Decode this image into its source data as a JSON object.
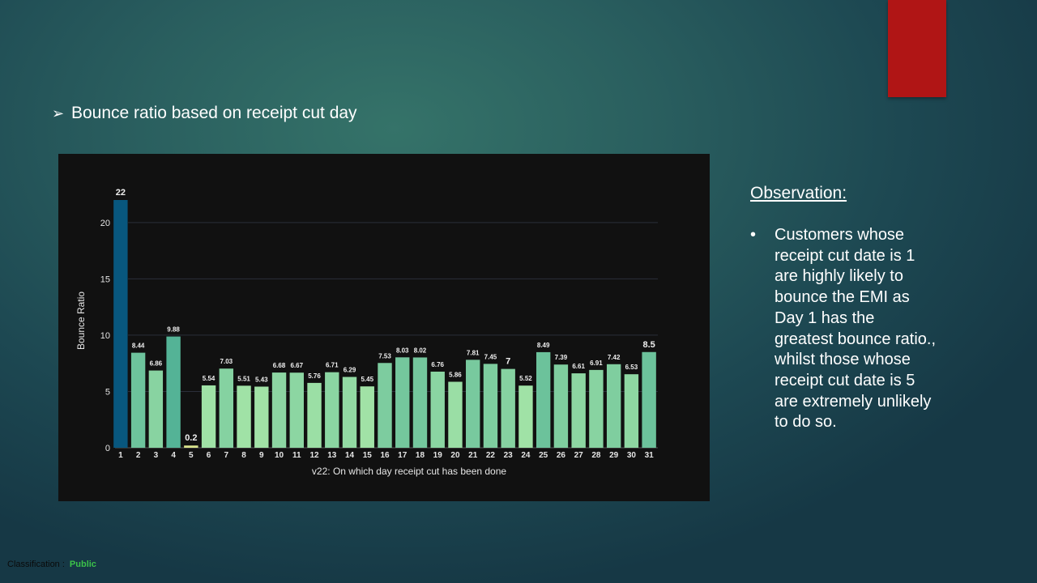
{
  "heading": {
    "arrow": "➢",
    "text": "Bounce ratio based on receipt cut day"
  },
  "observation": {
    "title": "Observation:",
    "bullet": "•",
    "text": "Customers whose receipt cut date is 1 are highly likely to bounce the EMI as Day 1 has the greatest bounce ratio., whilst those whose receipt cut date is 5 are extremely unlikely to do so."
  },
  "classification": {
    "label": "Classification :",
    "value": "Public"
  },
  "colors": {
    "accent_red": "#b01515",
    "bar_max": "#08577e",
    "panel_bg": "#111111"
  },
  "chart_data": {
    "type": "bar",
    "xlabel": "v22: On which day receipt cut has been done",
    "ylabel": "Bounce Ratio",
    "ylim": [
      0,
      22
    ],
    "yticks": [
      0,
      5,
      10,
      15,
      20
    ],
    "grid": true,
    "categories": [
      "1",
      "2",
      "3",
      "4",
      "5",
      "6",
      "7",
      "8",
      "9",
      "10",
      "11",
      "12",
      "13",
      "14",
      "15",
      "16",
      "17",
      "18",
      "19",
      "20",
      "21",
      "22",
      "23",
      "24",
      "25",
      "26",
      "27",
      "28",
      "29",
      "30",
      "31"
    ],
    "values": [
      22,
      8.44,
      6.86,
      9.88,
      0.2,
      5.54,
      7.03,
      5.51,
      5.43,
      6.68,
      6.67,
      5.76,
      6.71,
      6.29,
      5.45,
      7.53,
      8.03,
      8.02,
      6.76,
      5.86,
      7.81,
      7.45,
      7,
      5.52,
      8.49,
      7.39,
      6.61,
      6.91,
      7.42,
      6.53,
      8.5
    ],
    "value_labels": [
      "22",
      "8.44",
      "6.86",
      "9.88",
      "0.2",
      "5.54",
      "7.03",
      "5.51",
      "5.43",
      "6.68",
      "6.67",
      "5.76",
      "6.71",
      "6.29",
      "5.45",
      "7.53",
      "8.03",
      "8.02",
      "6.76",
      "5.86",
      "7.81",
      "7.45",
      "7",
      "5.52",
      "8.49",
      "7.39",
      "6.61",
      "6.91",
      "7.42",
      "6.53",
      "8.5"
    ]
  }
}
